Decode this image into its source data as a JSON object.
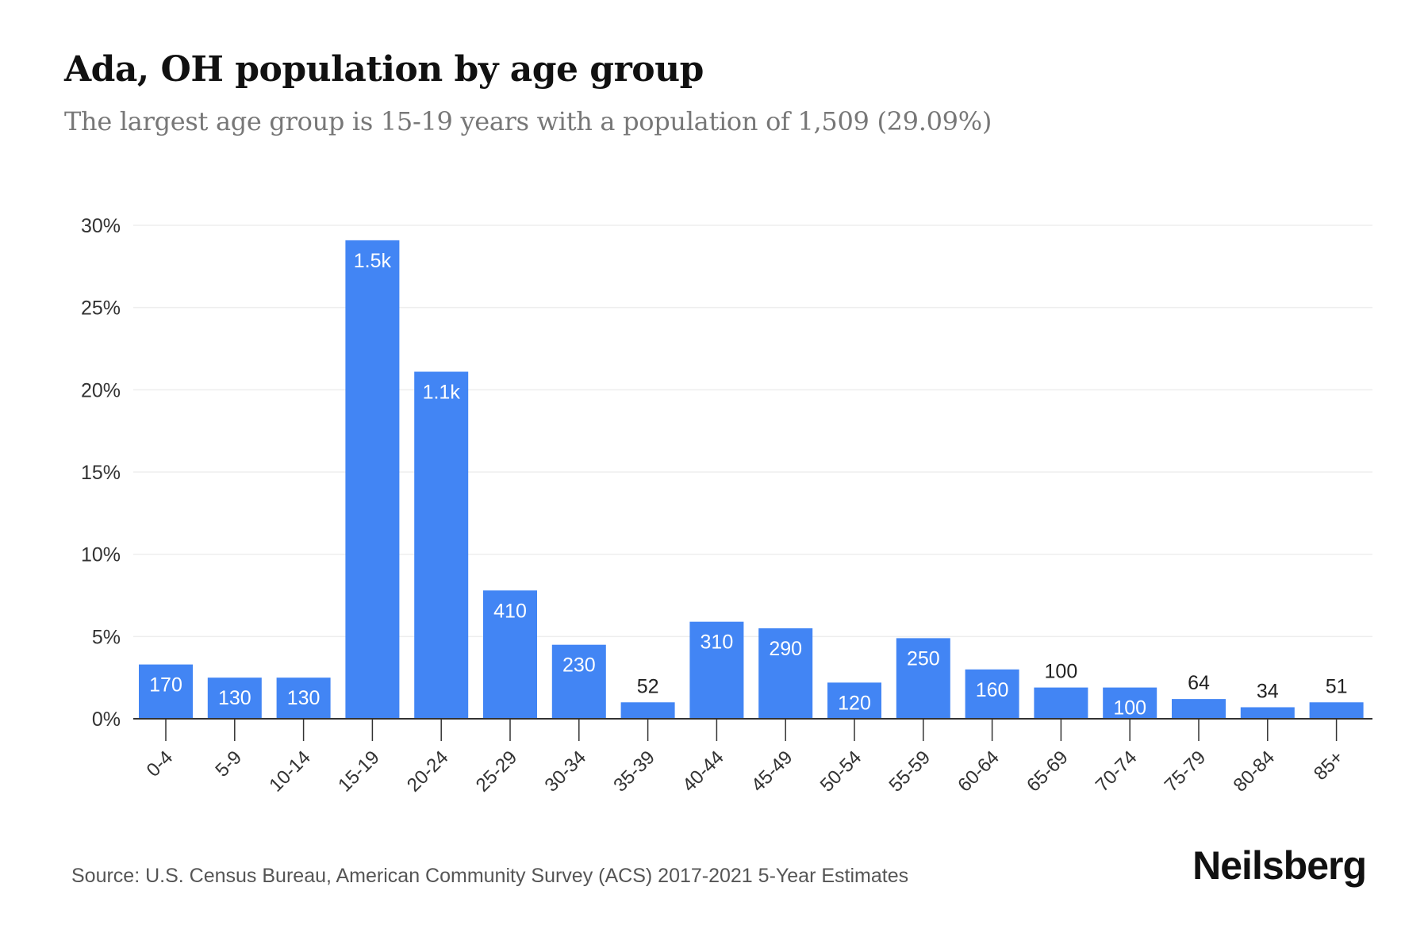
{
  "header": {
    "title": "Ada, OH population by age group",
    "subtitle": "The largest age group is 15-19 years with a population of 1,509 (29.09%)"
  },
  "footer": {
    "source": "Source: U.S. Census Bureau, American Community Survey (ACS) 2017-2021 5-Year Estimates",
    "brand": "Neilsberg"
  },
  "colors": {
    "bar": "#4285f4",
    "grid": "#eeeeee",
    "axis": "#333333",
    "label_inside": "#ffffff",
    "label_outside": "#222222"
  },
  "chart_data": {
    "type": "bar",
    "title": "Ada, OH population by age group",
    "subtitle": "The largest age group is 15-19 years with a population of 1,509 (29.09%)",
    "xlabel": "",
    "ylabel": "",
    "ylim": [
      0,
      30
    ],
    "yticks": [
      0,
      5,
      10,
      15,
      20,
      25,
      30
    ],
    "ytick_labels": [
      "0%",
      "5%",
      "10%",
      "15%",
      "20%",
      "25%",
      "30%"
    ],
    "grid": true,
    "categories": [
      "0-4",
      "5-9",
      "10-14",
      "15-19",
      "20-24",
      "25-29",
      "30-34",
      "35-39",
      "40-44",
      "45-49",
      "50-54",
      "55-59",
      "60-64",
      "65-69",
      "70-74",
      "75-79",
      "80-84",
      "85+"
    ],
    "values": [
      3.3,
      2.5,
      2.5,
      29.09,
      21.1,
      7.8,
      4.5,
      1.0,
      5.9,
      5.5,
      2.2,
      4.9,
      3.0,
      1.9,
      1.9,
      1.2,
      0.7,
      1.0
    ],
    "data_labels": [
      "170",
      "130",
      "130",
      "1.5k",
      "1.1k",
      "410",
      "230",
      "52",
      "310",
      "290",
      "120",
      "250",
      "160",
      "100",
      "100",
      "64",
      "34",
      "51"
    ],
    "label_inside": [
      true,
      true,
      true,
      true,
      true,
      true,
      true,
      false,
      true,
      true,
      true,
      true,
      true,
      false,
      true,
      false,
      false,
      false
    ]
  }
}
